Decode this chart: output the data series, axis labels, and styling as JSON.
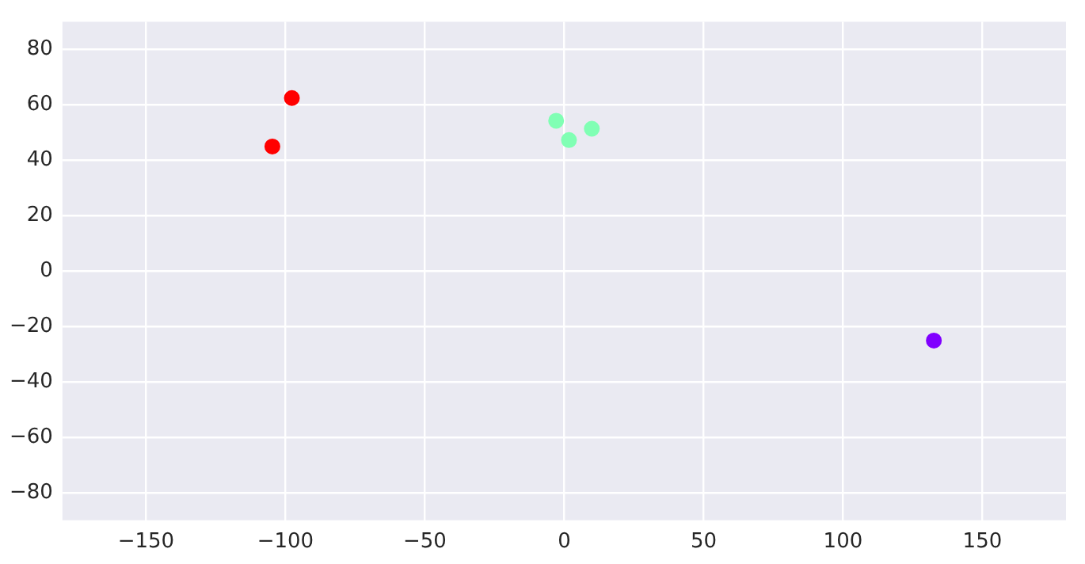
{
  "chart_data": {
    "type": "scatter",
    "x": [
      -104.7,
      -97.7,
      -2.9,
      1.7,
      9.9,
      132.6
    ],
    "values": [
      45,
      62.5,
      54.3,
      47.3,
      51.4,
      -25.1
    ],
    "colors": [
      "#ff0000",
      "#ff0000",
      "#80ffb4",
      "#80ffb4",
      "#80ffb4",
      "#8000ff"
    ],
    "xlim": [
      -180,
      180
    ],
    "xticks": [
      -150,
      -100,
      -50,
      0,
      50,
      100,
      150
    ],
    "ylim": [
      -90,
      90
    ],
    "yticks": [
      -80,
      -60,
      -40,
      -20,
      0,
      20,
      40,
      60,
      80
    ],
    "grid": true,
    "legend": false,
    "marker": "circle"
  }
}
